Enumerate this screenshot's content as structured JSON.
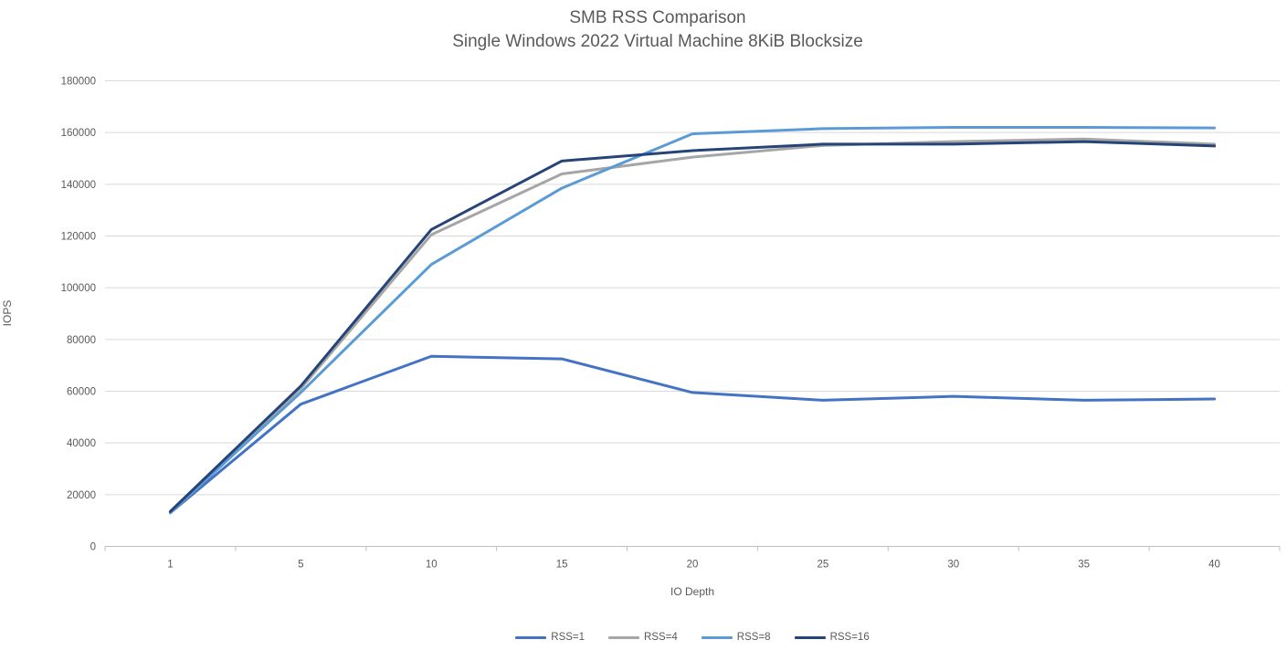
{
  "chart_data": {
    "type": "line",
    "title": "SMB RSS Comparison",
    "subtitle": "Single Windows 2022 Virtual Machine 8KiB Blocksize",
    "xlabel": "IO Depth",
    "ylabel": "IOPS",
    "categories": [
      1,
      5,
      10,
      15,
      20,
      25,
      30,
      35,
      40
    ],
    "series": [
      {
        "name": "RSS=1",
        "color": "#4472C4",
        "values": [
          13000,
          55000,
          73500,
          72500,
          59500,
          56500,
          58000,
          56500,
          57000
        ]
      },
      {
        "name": "RSS=4",
        "color": "#A6A6A6",
        "values": [
          13200,
          61000,
          120500,
          144000,
          150500,
          155000,
          156500,
          157500,
          155500
        ]
      },
      {
        "name": "RSS=8",
        "color": "#5B9BD5",
        "values": [
          13000,
          59500,
          109000,
          138500,
          159500,
          161500,
          162000,
          162000,
          161800
        ]
      },
      {
        "name": "RSS=16",
        "color": "#264478",
        "values": [
          13500,
          62000,
          122500,
          149000,
          153000,
          155500,
          155500,
          156500,
          154800
        ]
      }
    ],
    "ylim": [
      0,
      180000
    ],
    "ytick_step": 20000,
    "grid": true,
    "legend_position": "bottom",
    "gridline_color": "#D9D9D9",
    "axis_line_color": "#BFBFBF",
    "text_color": "#595959"
  }
}
